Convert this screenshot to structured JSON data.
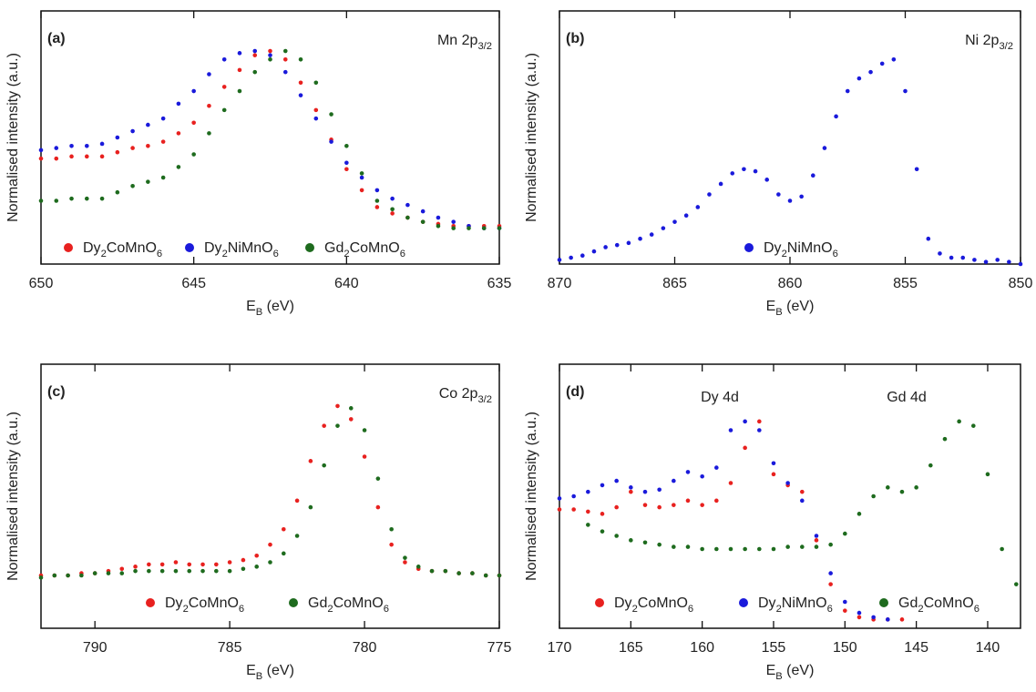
{
  "chart_data": [
    {
      "type": "scatter",
      "annotations": [
        "(a)",
        "Mn 2p3/2"
      ],
      "x_label": "EB (eV)",
      "y_label": "Normalised intensity (a.u.)",
      "xlim": [
        650,
        635
      ],
      "ylim": [
        0,
        1.2
      ],
      "xticks": [
        650,
        645,
        640,
        635
      ],
      "x": [
        650,
        649.5,
        649,
        648.5,
        648,
        647.5,
        647,
        646.5,
        646,
        645.5,
        645,
        644.5,
        644,
        643.5,
        643,
        642.5,
        642,
        641.5,
        641,
        640.5,
        640,
        639.5,
        639,
        638.5,
        638,
        637.5,
        637,
        636.5,
        636,
        635.5,
        635
      ],
      "series": [
        {
          "name": "Dy2CoMnO6",
          "color": "#e8211f",
          "values": [
            0.5,
            0.5,
            0.51,
            0.51,
            0.51,
            0.53,
            0.55,
            0.56,
            0.58,
            0.62,
            0.67,
            0.75,
            0.84,
            0.92,
            0.99,
            1.01,
            0.97,
            0.86,
            0.73,
            0.59,
            0.45,
            0.35,
            0.27,
            0.24,
            0.22,
            0.2,
            0.19,
            0.18,
            0.18,
            0.18,
            0.18
          ]
        },
        {
          "name": "Dy2NiMnO6",
          "color": "#1a1adb",
          "values": [
            0.54,
            0.55,
            0.56,
            0.56,
            0.57,
            0.6,
            0.63,
            0.66,
            0.69,
            0.76,
            0.82,
            0.9,
            0.97,
            1.0,
            1.01,
            0.99,
            0.91,
            0.8,
            0.69,
            0.58,
            0.48,
            0.41,
            0.35,
            0.31,
            0.28,
            0.25,
            0.22,
            0.2,
            0.18,
            0.17,
            0.17
          ]
        },
        {
          "name": "Gd2CoMnO6",
          "color": "#1e6b1e",
          "values": [
            0.3,
            0.3,
            0.31,
            0.31,
            0.31,
            0.34,
            0.37,
            0.39,
            0.41,
            0.46,
            0.52,
            0.62,
            0.73,
            0.82,
            0.91,
            0.97,
            1.01,
            0.97,
            0.86,
            0.71,
            0.56,
            0.43,
            0.3,
            0.26,
            0.22,
            0.2,
            0.18,
            0.17,
            0.17,
            0.17,
            0.17
          ]
        }
      ]
    },
    {
      "type": "scatter",
      "annotations": [
        "(b)",
        "Ni 2p3/2"
      ],
      "x_label": "EB (eV)",
      "y_label": "Normalised intensity (a.u.)",
      "xlim": [
        870,
        850
      ],
      "ylim": [
        0,
        1.2
      ],
      "xticks": [
        870,
        865,
        860,
        855,
        850
      ],
      "x": [
        870,
        869.5,
        869,
        868.5,
        868,
        867.5,
        867,
        866.5,
        866,
        865.5,
        865,
        864.5,
        864,
        863.5,
        863,
        862.5,
        862,
        861.5,
        861,
        860.5,
        860,
        859.5,
        859,
        858.5,
        858,
        857.5,
        857,
        856.5,
        856,
        855.5,
        855,
        854.5,
        854,
        853.5,
        853,
        852.5,
        852,
        851.5,
        851,
        850.5,
        850
      ],
      "series": [
        {
          "name": "Dy2NiMnO6",
          "color": "#1a1adb",
          "values": [
            0.02,
            0.03,
            0.04,
            0.06,
            0.08,
            0.09,
            0.1,
            0.12,
            0.14,
            0.17,
            0.2,
            0.23,
            0.27,
            0.33,
            0.38,
            0.43,
            0.45,
            0.44,
            0.4,
            0.33,
            0.3,
            0.32,
            0.42,
            0.55,
            0.7,
            0.82,
            0.88,
            0.91,
            0.95,
            0.97,
            0.82,
            0.45,
            0.12,
            0.05,
            0.03,
            0.03,
            0.02,
            0.01,
            0.02,
            0.01,
            0.0
          ]
        }
      ]
    },
    {
      "type": "scatter",
      "annotations": [
        "(c)",
        "Co 2p3/2"
      ],
      "x_label": "EB (eV)",
      "y_label": "Normalised intensity (a.u.)",
      "xlim": [
        792,
        775
      ],
      "ylim": [
        0,
        1.2
      ],
      "xticks": [
        790,
        785,
        780,
        775
      ],
      "x": [
        792,
        791.5,
        791,
        790.5,
        790,
        789.5,
        789,
        788.5,
        788,
        787.5,
        787,
        786.5,
        786,
        785.5,
        785,
        784.5,
        784,
        783.5,
        783,
        782.5,
        782,
        781.5,
        781,
        780.5,
        780,
        779.5,
        779,
        778.5,
        778,
        777.5,
        777,
        776.5,
        776,
        775.5,
        775
      ],
      "series": [
        {
          "name": "Dy2CoMnO6",
          "color": "#e8211f",
          "values": [
            0.24,
            0.24,
            0.24,
            0.25,
            0.25,
            0.26,
            0.27,
            0.28,
            0.29,
            0.29,
            0.3,
            0.29,
            0.29,
            0.29,
            0.3,
            0.31,
            0.33,
            0.38,
            0.45,
            0.58,
            0.76,
            0.92,
            1.01,
            0.95,
            0.78,
            0.55,
            0.38,
            0.3,
            0.27,
            0.26,
            0.26,
            0.25,
            0.25,
            0.24,
            0.24
          ]
        },
        {
          "name": "Gd2CoMnO6",
          "color": "#1e6b1e",
          "values": [
            0.23,
            0.24,
            0.24,
            0.24,
            0.25,
            0.25,
            0.25,
            0.26,
            0.26,
            0.26,
            0.26,
            0.26,
            0.26,
            0.26,
            0.26,
            0.27,
            0.28,
            0.3,
            0.34,
            0.42,
            0.55,
            0.74,
            0.92,
            1.0,
            0.9,
            0.68,
            0.45,
            0.32,
            0.28,
            0.26,
            0.26,
            0.25,
            0.25,
            0.24,
            0.24
          ]
        }
      ]
    },
    {
      "type": "scatter",
      "annotations": [
        "(d)",
        "Dy 4d",
        "Gd 4d"
      ],
      "x_label": "EB (eV)",
      "y_label": "Normalised intensity (a.u.)",
      "xlim": [
        170,
        137.7
      ],
      "ylim": [
        0,
        1.2
      ],
      "xticks": [
        170,
        165,
        160,
        155,
        150,
        145,
        140
      ],
      "series": [
        {
          "name": "Dy2CoMnO6",
          "color": "#e8211f",
          "x": [
            170,
            169,
            168,
            167,
            166,
            165,
            164,
            163,
            162,
            161,
            160,
            159,
            158,
            157,
            156,
            155,
            154,
            153,
            152,
            151,
            150,
            149,
            148,
            147,
            146
          ],
          "values": [
            0.54,
            0.54,
            0.53,
            0.52,
            0.55,
            0.62,
            0.56,
            0.55,
            0.56,
            0.58,
            0.56,
            0.58,
            0.66,
            0.82,
            0.94,
            0.7,
            0.65,
            0.62,
            0.4,
            0.2,
            0.08,
            0.05,
            0.04,
            0.04,
            0.04
          ]
        },
        {
          "name": "Dy2NiMnO6",
          "color": "#1a1adb",
          "x": [
            170,
            169,
            168,
            167,
            166,
            165,
            164,
            163,
            162,
            161,
            160,
            159,
            158,
            157,
            156,
            155,
            154,
            153,
            152,
            151,
            150,
            149,
            148,
            147
          ],
          "values": [
            0.59,
            0.6,
            0.62,
            0.65,
            0.67,
            0.64,
            0.62,
            0.63,
            0.67,
            0.71,
            0.69,
            0.73,
            0.9,
            0.94,
            0.9,
            0.75,
            0.66,
            0.58,
            0.42,
            0.25,
            0.12,
            0.07,
            0.05,
            0.04
          ]
        },
        {
          "name": "Gd2CoMnO6",
          "color": "#1e6b1e",
          "x": [
            168,
            167,
            166,
            165,
            164,
            163,
            162,
            161,
            160,
            159,
            158,
            157,
            156,
            155,
            154,
            153,
            152,
            151,
            150,
            149,
            148,
            147,
            146,
            145,
            144,
            143,
            142,
            141,
            140,
            139,
            138
          ],
          "values": [
            0.47,
            0.44,
            0.42,
            0.4,
            0.39,
            0.38,
            0.37,
            0.37,
            0.36,
            0.36,
            0.36,
            0.36,
            0.36,
            0.36,
            0.37,
            0.37,
            0.37,
            0.38,
            0.43,
            0.52,
            0.6,
            0.64,
            0.62,
            0.64,
            0.74,
            0.86,
            0.94,
            0.92,
            0.7,
            0.36,
            0.2
          ]
        }
      ]
    }
  ]
}
